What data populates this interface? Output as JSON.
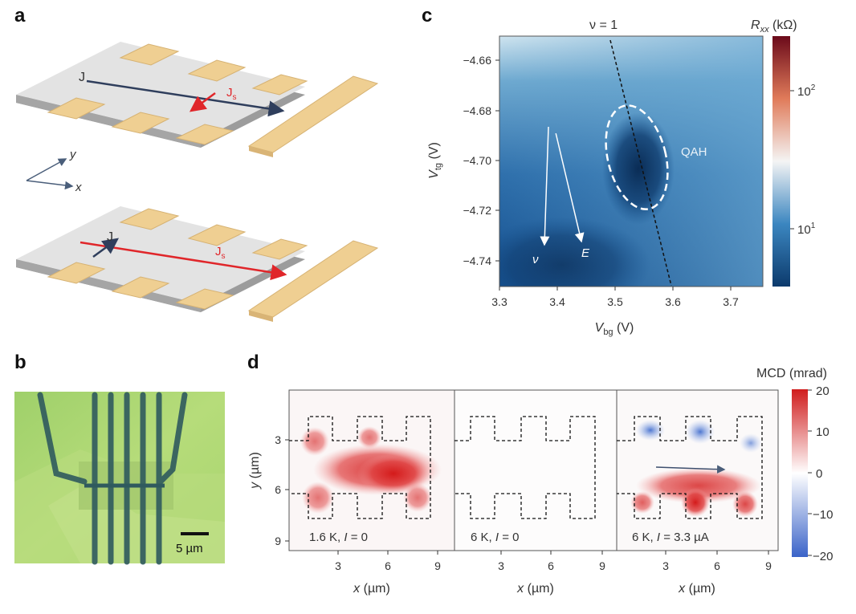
{
  "panels": {
    "a": "a",
    "b": "b",
    "c": "c",
    "d": "d"
  },
  "panel_a": {
    "top_J": "J",
    "top_Js_main": "J",
    "top_Js_sub": "s",
    "axis_y": "y",
    "axis_x": "x",
    "bottom_J": "J",
    "bottom_Js_main": "J",
    "bottom_Js_sub": "s",
    "colors": {
      "slab": "#e3e3e3",
      "slab_edge": "#9a9a9a",
      "contact": "#efcf92",
      "J_arrow": "#2f3e5c",
      "Js_arrow": "#e0262a"
    }
  },
  "panel_b": {
    "scalebar": "5 µm"
  },
  "panel_c": {
    "nu_label": "ν = 1",
    "colorbar_R": "R",
    "colorbar_R_sub": "xx",
    "colorbar_unit": " (kΩ)",
    "cb_tick_102_base": "10",
    "cb_tick_102_exp": "2",
    "cb_tick_101_base": "10",
    "cb_tick_101_exp": "1",
    "qah": "QAH",
    "arrow_nu": "ν",
    "arrow_E": "E",
    "ylabel_V": "V",
    "ylabel_sub": "tg",
    "ylabel_unit": " (V)",
    "xlabel_V": "V",
    "xlabel_sub": "bg",
    "xlabel_unit": " (V)",
    "yticks": [
      "−4.66",
      "−4.68",
      "−4.70",
      "−4.72",
      "−4.74"
    ],
    "xticks": [
      "3.3",
      "3.4",
      "3.5",
      "3.6",
      "3.7"
    ]
  },
  "panel_d": {
    "cb_title": "MCD (mrad)",
    "cb_ticks": [
      "20",
      "10",
      "0",
      "−10",
      "−20"
    ],
    "ylabel_y": "y",
    "ylabel_unit": " (µm)",
    "yticks": [
      "3",
      "6",
      "9"
    ],
    "xticks": [
      "3",
      "6",
      "9"
    ],
    "xlabel_x": "x",
    "xlabel_unit": " (µm)",
    "sub1_pre": "1.6 K, ",
    "sub1_I": "I",
    "sub1_post": " = 0",
    "sub2_pre": "6 K, ",
    "sub2_I": "I",
    "sub2_post": " = 0",
    "sub3_pre": "6 K, ",
    "sub3_I": "I",
    "sub3_post": " = 3.3 µA"
  },
  "chart_data": [
    {
      "type": "heatmap",
      "xlabel": "V_bg (V)",
      "ylabel": "V_tg (V)",
      "xlim": [
        3.3,
        3.75
      ],
      "ylim": [
        -4.75,
        -4.65
      ],
      "colorbar": "R_xx (kΩ)",
      "colorscale": "log",
      "annotations": [
        "ν = 1",
        "QAH",
        "ν",
        "E"
      ]
    },
    {
      "type": "heatmap",
      "colorbar": "MCD (mrad)",
      "clim": [
        -20,
        20
      ],
      "xlabel": "x (µm)",
      "ylabel": "y (µm)",
      "subplots": [
        "1.6 K, I = 0",
        "6 K, I = 0",
        "6 K, I = 3.3 µA"
      ]
    }
  ]
}
